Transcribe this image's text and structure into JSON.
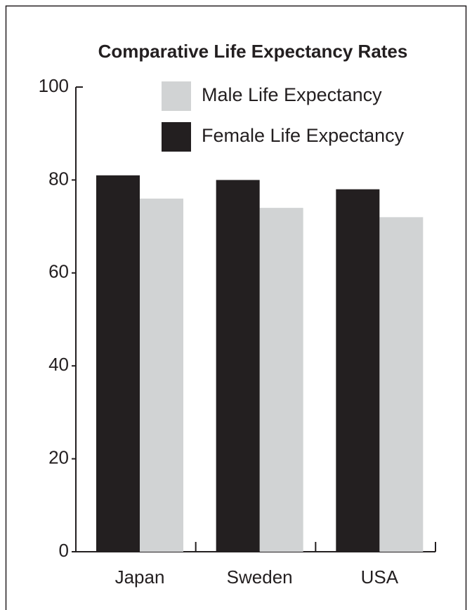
{
  "chart_data": {
    "type": "bar",
    "title": "Comparative Life Expectancy Rates",
    "categories": [
      "Japan",
      "Sweden",
      "USA"
    ],
    "series": [
      {
        "name": "Male Life Expectancy",
        "color": "#d1d3d4",
        "values": [
          76,
          74,
          72
        ]
      },
      {
        "name": "Female Life Expectancy",
        "color": "#231f20",
        "values": [
          81,
          80,
          78
        ]
      }
    ],
    "ylim": [
      0,
      100
    ],
    "yticks": [
      0,
      20,
      40,
      60,
      80,
      100
    ],
    "grid": false
  }
}
